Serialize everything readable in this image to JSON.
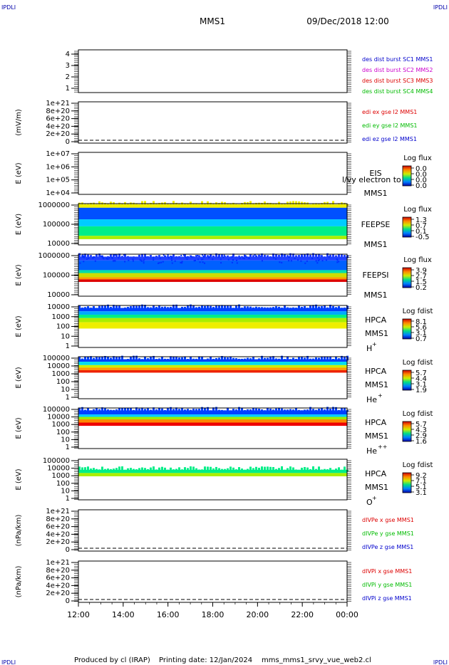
{
  "header": {
    "corner_label": "IPDLI",
    "mission": "MMS1",
    "datetime": "09/Dec/2018 12:00"
  },
  "footer": {
    "produced_by": "Produced by cl (IRAP)",
    "printing_date": "Printing date: 12/Jan/2024",
    "filename": "mms_mms1_srvy_vue_web2.cl"
  },
  "time_axis": {
    "ticks": [
      "12:00",
      "14:00",
      "16:00",
      "18:00",
      "20:00",
      "22:00",
      "00:00"
    ]
  },
  "chart_data": [
    {
      "type": "line",
      "ytick_labels": [
        "1",
        "2",
        "3",
        "4"
      ],
      "legend": [
        {
          "text": "des dist burst SC1 MMS1",
          "color": "#0000cc"
        },
        {
          "text": "des dist burst SC2 MMS2",
          "color": "#cc00cc"
        },
        {
          "text": "des dist burst SC3 MMS3",
          "color": "#dd0000"
        },
        {
          "text": "des dist burst SC4 MMS4",
          "color": "#00bb00"
        }
      ]
    },
    {
      "type": "line",
      "ylabel": "(mV/m)",
      "ytick_labels": [
        "1e+21",
        "8e+20",
        "6e+20",
        "4e+20",
        "2e+20",
        "0"
      ],
      "legend": [
        {
          "text": "edi ex gse l2 MMS1",
          "color": "#dd0000"
        },
        {
          "text": "edi ey gse l2 MMS1",
          "color": "#00bb00"
        },
        {
          "text": "edi ez gse l2 MMS1",
          "color": "#0000cc"
        }
      ]
    },
    {
      "type": "heatmap",
      "ylabel": "E (eV)",
      "ytick_labels": [
        "1e+07",
        "1e+06",
        "1e+05",
        "1e+04"
      ],
      "right_labels": [
        "EIS",
        "MMS1"
      ],
      "overlay_text": "l/vy electron to",
      "colorbar": {
        "title": "Log flux",
        "ticks": [
          "0.0",
          "0.0",
          "0.0",
          "0.0"
        ]
      }
    },
    {
      "type": "heatmap",
      "ylabel": "E (eV)",
      "ytick_labels": [
        "1000000",
        "100000",
        "10000"
      ],
      "right_labels": [
        "FEEPSE",
        "MMS1"
      ],
      "colorbar": {
        "title": "Log flux",
        "ticks": [
          "1.3",
          "0.7",
          "0.1",
          "-0.5"
        ]
      }
    },
    {
      "type": "heatmap",
      "ylabel": "E (eV)",
      "ytick_labels": [
        "1000000",
        "100000",
        "10000"
      ],
      "right_labels": [
        "FEEPSI",
        "MMS1"
      ],
      "colorbar": {
        "title": "Log flux",
        "ticks": [
          "3.9",
          "2.7",
          "1.5",
          "0.2"
        ]
      }
    },
    {
      "type": "heatmap",
      "ylabel": "E (eV)",
      "ytick_labels": [
        "10000",
        "1000",
        "100",
        "10",
        "1"
      ],
      "right_labels": [
        "HPCA",
        "MMS1"
      ],
      "species": "H",
      "species_sup": "+",
      "colorbar": {
        "title": "Log fdist",
        "ticks": [
          "8.1",
          "5.6",
          "3.1",
          "0.7"
        ]
      }
    },
    {
      "type": "heatmap",
      "ylabel": "E (eV)",
      "ytick_labels": [
        "100000",
        "10000",
        "1000",
        "100",
        "10",
        "1"
      ],
      "right_labels": [
        "HPCA",
        "MMS1"
      ],
      "species": "He",
      "species_sup": "+",
      "colorbar": {
        "title": "Log fdist",
        "ticks": [
          "5.7",
          "4.4",
          "3.1",
          "1.9"
        ]
      }
    },
    {
      "type": "heatmap",
      "ylabel": "E (eV)",
      "ytick_labels": [
        "100000",
        "10000",
        "1000",
        "100",
        "10",
        "1"
      ],
      "right_labels": [
        "HPCA",
        "MMS1"
      ],
      "species": "He",
      "species_sup": "++",
      "colorbar": {
        "title": "Log fdist",
        "ticks": [
          "5.7",
          "4.3",
          "2.9",
          "1.6"
        ]
      }
    },
    {
      "type": "heatmap",
      "ylabel": "E (eV)",
      "ytick_labels": [
        "100000",
        "10000",
        "1000",
        "100",
        "10",
        "1"
      ],
      "right_labels": [
        "HPCA",
        "MMS1"
      ],
      "species": "O",
      "species_sup": "+",
      "colorbar": {
        "title": "Log fdist",
        "ticks": [
          "9.2",
          "7.1",
          "5.1",
          "3.1"
        ]
      }
    },
    {
      "type": "line",
      "ylabel": "(nPa/km)",
      "ytick_labels": [
        "1e+21",
        "8e+20",
        "6e+20",
        "4e+20",
        "2e+20",
        "0"
      ],
      "legend": [
        {
          "text": "dIVPe x gse MMS1",
          "color": "#dd0000"
        },
        {
          "text": "dIVPe y gse MMS1",
          "color": "#00bb00"
        },
        {
          "text": "dIVPe z gse MMS1",
          "color": "#0000cc"
        }
      ]
    },
    {
      "type": "line",
      "ylabel": "(nPa/km)",
      "ytick_labels": [
        "1e+21",
        "8e+20",
        "6e+20",
        "4e+20",
        "2e+20",
        "0"
      ],
      "legend": [
        {
          "text": "dIVPi x gse MMS1",
          "color": "#dd0000"
        },
        {
          "text": "dIVPi y gse MMS1",
          "color": "#00bb00"
        },
        {
          "text": "dIVPi z gse MMS1",
          "color": "#0000cc"
        }
      ]
    }
  ]
}
